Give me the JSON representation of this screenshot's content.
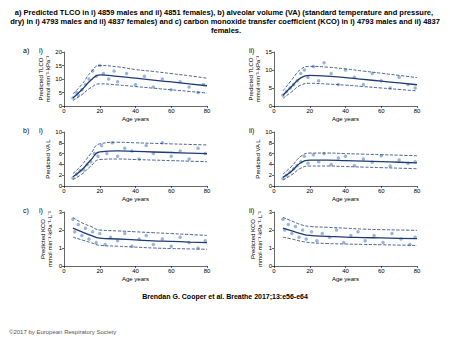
{
  "header": {
    "title": "a) Predicted TLCO in i) 4859 males and ii) 4851 females), b) alveolar volume (VA) (standard temperature and pressure, dry) in i) 4793 males and ii) 4837 females) and c) carbon monoxide transfer coefficient (KCO) in i) 4793 males and ii) 4837 females.",
    "citation": "Brendan G. Cooper et al. Breathe 2017;13:e56-e64",
    "copyright": "©2017 by European Respiratory Society"
  },
  "chart_data": [
    {
      "type": "scatter",
      "row": "a)",
      "panel": "i)",
      "x_label": "Age years",
      "y_label": "Predicted TLCO\nmmol·min⁻¹·kPa⁻¹",
      "xlim": [
        0,
        80
      ],
      "xticks": [
        0,
        20,
        40,
        60,
        80
      ],
      "ylim": [
        0,
        20
      ],
      "yticks": [
        0,
        5,
        10,
        15,
        20
      ],
      "series": [
        {
          "type": "scatter",
          "marker": "circle",
          "color": "#7fa3d6",
          "x": [
            5,
            7,
            8,
            10,
            12,
            14,
            16,
            18,
            20,
            22,
            25,
            28,
            30,
            35,
            40,
            45,
            50,
            55,
            60,
            65,
            70,
            75,
            78
          ],
          "values": [
            3,
            5,
            4,
            6,
            8,
            10,
            13,
            11,
            15,
            12,
            10,
            13,
            9,
            12,
            8,
            11,
            7,
            10,
            6,
            9,
            7,
            5,
            8
          ]
        },
        {
          "type": "line",
          "line_style": "solid",
          "color": "#1f3b73",
          "x": [
            5,
            10,
            15,
            20,
            30,
            40,
            50,
            60,
            70,
            80
          ],
          "values": [
            3,
            6,
            9.5,
            11.5,
            11,
            10.3,
            9.6,
            8.9,
            8.2,
            7.5
          ]
        },
        {
          "type": "line",
          "line_style": "dashed",
          "color": "#1f3b73",
          "x": [
            5,
            10,
            15,
            20,
            30,
            40,
            50,
            60,
            70,
            80
          ],
          "values": [
            4.5,
            8,
            12.5,
            15,
            14.5,
            13.5,
            12.8,
            12,
            11.2,
            10.3
          ]
        },
        {
          "type": "line",
          "line_style": "dashed",
          "color": "#1f3b73",
          "x": [
            5,
            10,
            15,
            20,
            30,
            40,
            50,
            60,
            70,
            80
          ],
          "values": [
            2,
            4.2,
            6.8,
            8.2,
            7.8,
            7.2,
            6.6,
            6,
            5.4,
            4.8
          ]
        }
      ]
    },
    {
      "type": "scatter",
      "row": "",
      "panel": "ii)",
      "x_label": "Age years",
      "y_label": "Predicted TLCO\nmmol·min⁻¹·kPa⁻¹",
      "xlim": [
        0,
        80
      ],
      "xticks": [
        0,
        20,
        40,
        60,
        80
      ],
      "ylim": [
        0,
        15
      ],
      "yticks": [
        0,
        5,
        10,
        15
      ],
      "series": [
        {
          "type": "scatter",
          "marker": "circle",
          "color": "#7fa3d6",
          "x": [
            5,
            7,
            9,
            11,
            13,
            15,
            17,
            19,
            22,
            25,
            28,
            32,
            36,
            40,
            45,
            50,
            55,
            60,
            65,
            70,
            75,
            79
          ],
          "values": [
            3,
            4,
            5,
            6,
            7,
            9,
            10,
            8,
            11,
            7,
            12,
            9,
            6,
            10,
            8,
            6,
            9,
            7,
            5,
            8,
            6,
            5
          ]
        },
        {
          "type": "line",
          "line_style": "solid",
          "color": "#1f3b73",
          "x": [
            5,
            10,
            15,
            20,
            30,
            40,
            50,
            60,
            70,
            80
          ],
          "values": [
            3,
            5.5,
            7.8,
            8.5,
            8.3,
            7.9,
            7.4,
            6.9,
            6.4,
            5.9
          ]
        },
        {
          "type": "line",
          "line_style": "dashed",
          "color": "#1f3b73",
          "x": [
            5,
            10,
            15,
            20,
            30,
            40,
            50,
            60,
            70,
            80
          ],
          "values": [
            4.2,
            7.3,
            10.2,
            11,
            10.8,
            10.3,
            9.7,
            9.1,
            8.5,
            7.9
          ]
        },
        {
          "type": "line",
          "line_style": "dashed",
          "color": "#1f3b73",
          "x": [
            5,
            10,
            15,
            20,
            30,
            40,
            50,
            60,
            70,
            80
          ],
          "values": [
            2.1,
            4,
            5.8,
            6.3,
            6.1,
            5.8,
            5.4,
            5,
            4.6,
            4.2
          ]
        }
      ]
    },
    {
      "type": "scatter",
      "row": "b)",
      "panel": "i)",
      "x_label": "Age years",
      "y_label": "Predicted VA L",
      "xlim": [
        0,
        80
      ],
      "xticks": [
        0,
        20,
        40,
        60,
        80
      ],
      "ylim": [
        0,
        10
      ],
      "yticks": [
        0,
        2,
        4,
        6,
        8,
        10
      ],
      "series": [
        {
          "type": "scatter",
          "marker": "circle",
          "color": "#7fa3d6",
          "x": [
            5,
            7,
            9,
            11,
            13,
            15,
            17,
            19,
            21,
            24,
            27,
            30,
            34,
            38,
            42,
            46,
            50,
            55,
            60,
            65,
            70,
            75,
            79
          ],
          "values": [
            1.5,
            2.2,
            2.8,
            3,
            4,
            4.5,
            6,
            5.5,
            7.5,
            6,
            8,
            5.5,
            7,
            6.5,
            5,
            7.5,
            6,
            8,
            5.5,
            6.5,
            5,
            7,
            6
          ]
        },
        {
          "type": "line",
          "line_style": "solid",
          "color": "#1f3b73",
          "x": [
            5,
            10,
            15,
            20,
            30,
            40,
            50,
            60,
            70,
            80
          ],
          "values": [
            1.7,
            3,
            4.8,
            6.3,
            6.5,
            6.4,
            6.3,
            6.2,
            6.1,
            6
          ]
        },
        {
          "type": "line",
          "line_style": "dashed",
          "color": "#1f3b73",
          "x": [
            5,
            10,
            15,
            20,
            30,
            40,
            50,
            60,
            70,
            80
          ],
          "values": [
            2.3,
            3.9,
            6,
            7.8,
            8.1,
            8,
            7.9,
            7.8,
            7.7,
            7.6
          ]
        },
        {
          "type": "line",
          "line_style": "dashed",
          "color": "#1f3b73",
          "x": [
            5,
            10,
            15,
            20,
            30,
            40,
            50,
            60,
            70,
            80
          ],
          "values": [
            1.2,
            2.2,
            3.7,
            4.9,
            5,
            4.9,
            4.8,
            4.7,
            4.6,
            4.5
          ]
        }
      ]
    },
    {
      "type": "scatter",
      "row": "",
      "panel": "ii)",
      "x_label": "Age years",
      "y_label": "Predicted VA L",
      "xlim": [
        0,
        80
      ],
      "xticks": [
        0,
        20,
        40,
        60,
        80
      ],
      "ylim": [
        0,
        10
      ],
      "yticks": [
        0,
        2,
        4,
        6,
        8,
        10
      ],
      "series": [
        {
          "type": "scatter",
          "marker": "circle",
          "color": "#7fa3d6",
          "x": [
            5,
            7,
            9,
            11,
            13,
            15,
            17,
            19,
            22,
            25,
            28,
            32,
            36,
            40,
            45,
            50,
            55,
            60,
            65,
            70,
            75,
            79
          ],
          "values": [
            1.4,
            2,
            2.6,
            3.2,
            3.8,
            4.5,
            5.5,
            4.2,
            5.8,
            4.5,
            6,
            4,
            5.2,
            5.5,
            3.8,
            5,
            4.4,
            5.6,
            3.7,
            4.8,
            4.2,
            4.5
          ]
        },
        {
          "type": "line",
          "line_style": "solid",
          "color": "#1f3b73",
          "x": [
            5,
            10,
            15,
            20,
            30,
            40,
            50,
            60,
            70,
            80
          ],
          "values": [
            1.6,
            2.8,
            4.3,
            4.8,
            4.8,
            4.7,
            4.6,
            4.5,
            4.4,
            4.3
          ]
        },
        {
          "type": "line",
          "line_style": "dashed",
          "color": "#1f3b73",
          "x": [
            5,
            10,
            15,
            20,
            30,
            40,
            50,
            60,
            70,
            80
          ],
          "values": [
            2.2,
            3.7,
            5.5,
            6.1,
            6.1,
            6,
            5.9,
            5.8,
            5.7,
            5.6
          ]
        },
        {
          "type": "line",
          "line_style": "dashed",
          "color": "#1f3b73",
          "x": [
            5,
            10,
            15,
            20,
            30,
            40,
            50,
            60,
            70,
            80
          ],
          "values": [
            1.1,
            2.1,
            3.3,
            3.7,
            3.7,
            3.6,
            3.5,
            3.4,
            3.3,
            3.2
          ]
        }
      ]
    },
    {
      "type": "scatter",
      "row": "c)",
      "panel": "i)",
      "x_label": "Age years",
      "y_label": "Predicted KCO\nmmol·min⁻¹·kPa⁻¹·L⁻¹",
      "xlim": [
        0,
        80
      ],
      "xticks": [
        0,
        20,
        40,
        60,
        80
      ],
      "ylim": [
        0,
        3
      ],
      "yticks": [
        0,
        1,
        2,
        3
      ],
      "series": [
        {
          "type": "scatter",
          "marker": "circle",
          "color": "#7fa3d6",
          "x": [
            5,
            6,
            8,
            10,
            12,
            14,
            16,
            18,
            20,
            23,
            26,
            30,
            34,
            38,
            42,
            46,
            50,
            55,
            60,
            65,
            70,
            75,
            79
          ],
          "values": [
            2.6,
            1.9,
            2.3,
            1.7,
            2.1,
            1.5,
            1.9,
            1.3,
            1.8,
            1.2,
            1.6,
            1.4,
            1.8,
            1.1,
            1.5,
            1.7,
            1.2,
            1.5,
            1.1,
            1.6,
            1.3,
            1,
            1.4
          ]
        },
        {
          "type": "line",
          "line_style": "solid",
          "color": "#1f3b73",
          "x": [
            5,
            10,
            15,
            20,
            30,
            40,
            50,
            60,
            70,
            80
          ],
          "values": [
            2.1,
            1.9,
            1.7,
            1.55,
            1.5,
            1.45,
            1.4,
            1.37,
            1.33,
            1.3
          ]
        },
        {
          "type": "line",
          "line_style": "dashed",
          "color": "#1f3b73",
          "x": [
            5,
            10,
            15,
            20,
            30,
            40,
            50,
            60,
            70,
            80
          ],
          "values": [
            2.7,
            2.4,
            2.2,
            2,
            1.95,
            1.9,
            1.85,
            1.8,
            1.75,
            1.7
          ]
        },
        {
          "type": "line",
          "line_style": "dashed",
          "color": "#1f3b73",
          "x": [
            5,
            10,
            15,
            20,
            30,
            40,
            50,
            60,
            70,
            80
          ],
          "values": [
            1.6,
            1.45,
            1.3,
            1.15,
            1.1,
            1.05,
            1,
            0.97,
            0.95,
            0.93
          ]
        }
      ]
    },
    {
      "type": "scatter",
      "row": "",
      "panel": "ii)",
      "x_label": "Age years",
      "y_label": "Predicted KCO\nmmol·min⁻¹·kPa⁻¹·L⁻¹",
      "xlim": [
        0,
        80
      ],
      "xticks": [
        0,
        20,
        40,
        60,
        80
      ],
      "ylim": [
        0,
        3
      ],
      "yticks": [
        0,
        1,
        2,
        3
      ],
      "series": [
        {
          "type": "scatter",
          "marker": "circle",
          "color": "#7fa3d6",
          "x": [
            5,
            6,
            8,
            10,
            12,
            14,
            16,
            18,
            21,
            24,
            27,
            31,
            35,
            39,
            43,
            47,
            51,
            56,
            61,
            66,
            71,
            76,
            79
          ],
          "values": [
            2.6,
            2,
            2.3,
            1.8,
            2.2,
            1.6,
            2,
            1.5,
            1.9,
            1.4,
            1.8,
            1.6,
            2,
            1.3,
            1.7,
            1.9,
            1.4,
            1.7,
            1.3,
            1.8,
            1.5,
            1.2,
            1.6
          ]
        },
        {
          "type": "line",
          "line_style": "solid",
          "color": "#1f3b73",
          "x": [
            5,
            10,
            15,
            20,
            30,
            40,
            50,
            60,
            70,
            80
          ],
          "values": [
            2.1,
            1.95,
            1.8,
            1.7,
            1.65,
            1.6,
            1.58,
            1.56,
            1.54,
            1.52
          ]
        },
        {
          "type": "line",
          "line_style": "dashed",
          "color": "#1f3b73",
          "x": [
            5,
            10,
            15,
            20,
            30,
            40,
            50,
            60,
            70,
            80
          ],
          "values": [
            2.7,
            2.5,
            2.3,
            2.2,
            2.15,
            2.1,
            2.05,
            2.02,
            2,
            1.98
          ]
        },
        {
          "type": "line",
          "line_style": "dashed",
          "color": "#1f3b73",
          "x": [
            5,
            10,
            15,
            20,
            30,
            40,
            50,
            60,
            70,
            80
          ],
          "values": [
            1.6,
            1.5,
            1.38,
            1.3,
            1.25,
            1.22,
            1.2,
            1.18,
            1.16,
            1.14
          ]
        }
      ]
    }
  ]
}
